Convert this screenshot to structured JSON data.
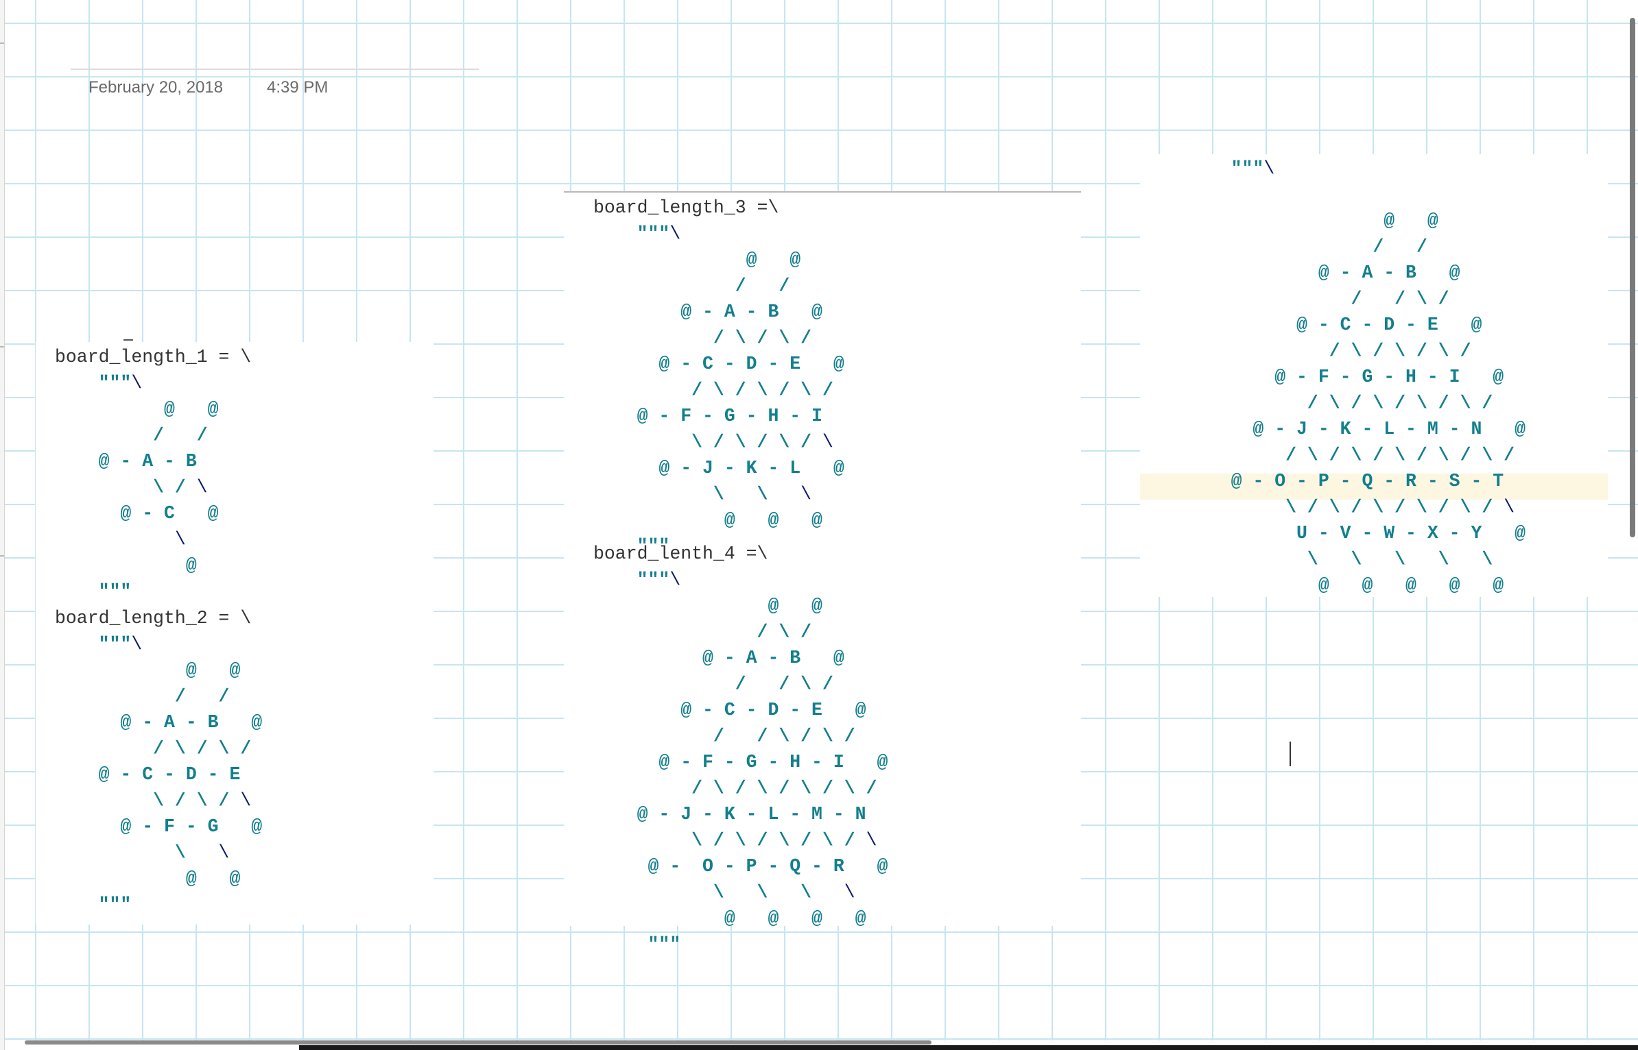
{
  "page": {
    "date": "February 20, 2018",
    "time": "4:39 PM"
  },
  "blocks": [
    {
      "name": "board-length-1",
      "lines": [
        [
          [
            "var",
            "board_length_1 = \\"
          ]
        ],
        [
          [
            "art",
            "    \"\"\""
          ],
          [
            "bs",
            "\\"
          ]
        ],
        [
          [
            "art",
            "          @   @"
          ]
        ],
        [
          [
            "art",
            "         /   /"
          ]
        ],
        [
          [
            "art",
            "    @ - A - B"
          ]
        ],
        [
          [
            "art",
            "         \\ / "
          ],
          [
            "bs",
            "\\"
          ]
        ],
        [
          [
            "art",
            "      @ - C   @"
          ]
        ],
        [
          [
            "art",
            "           "
          ],
          [
            "bs",
            "\\"
          ]
        ],
        [
          [
            "art",
            "            @"
          ]
        ],
        [
          [
            "art",
            "    \"\"\""
          ]
        ]
      ]
    },
    {
      "name": "board-length-2",
      "lines": [
        [
          [
            "var",
            "board_length_2 = \\"
          ]
        ],
        [
          [
            "art",
            "    \"\"\""
          ],
          [
            "bs",
            "\\"
          ]
        ],
        [
          [
            "art",
            "            @   @"
          ]
        ],
        [
          [
            "art",
            "           /   /"
          ]
        ],
        [
          [
            "art",
            "      @ - A - B   @"
          ]
        ],
        [
          [
            "art",
            "         / \\ / \\ /"
          ]
        ],
        [
          [
            "art",
            "    @ - C - D - E"
          ]
        ],
        [
          [
            "art",
            "         \\ / \\ / "
          ],
          [
            "bs",
            "\\"
          ]
        ],
        [
          [
            "art",
            "      @ - F - G   @"
          ]
        ],
        [
          [
            "art",
            "           \\   "
          ],
          [
            "bs",
            "\\"
          ]
        ],
        [
          [
            "art",
            "            @   @"
          ]
        ],
        [
          [
            "art",
            "    \"\"\""
          ]
        ]
      ]
    },
    {
      "name": "board-length-3",
      "lines": [
        [
          [
            "var",
            "board_length_3 =\\"
          ]
        ],
        [
          [
            "art",
            "    \"\"\""
          ],
          [
            "bs",
            "\\"
          ]
        ],
        [
          [
            "art",
            "              @   @"
          ]
        ],
        [
          [
            "art",
            "             /   /"
          ]
        ],
        [
          [
            "art",
            "        @ - A - B   @"
          ]
        ],
        [
          [
            "art",
            "           / \\ / \\ /"
          ]
        ],
        [
          [
            "art",
            "      @ - C - D - E   @"
          ]
        ],
        [
          [
            "art",
            "         / \\ / \\ / \\ /"
          ]
        ],
        [
          [
            "art",
            "    @ - F - G - H - I"
          ]
        ],
        [
          [
            "art",
            "         \\ / \\ / \\ / "
          ],
          [
            "bs",
            "\\"
          ]
        ],
        [
          [
            "art",
            "      @ - J - K - L   @"
          ]
        ],
        [
          [
            "art",
            "           \\   \\   "
          ],
          [
            "bs",
            "\\"
          ]
        ],
        [
          [
            "art",
            "            @   @   @"
          ]
        ],
        [
          [
            "art",
            "    \"\"\""
          ]
        ]
      ]
    },
    {
      "name": "board-length-4",
      "lines": [
        [
          [
            "var",
            "board_lenth_4 =\\"
          ]
        ],
        [
          [
            "art",
            "    \"\"\""
          ],
          [
            "bs",
            "\\"
          ]
        ],
        [
          [
            "art",
            "                @   @"
          ]
        ],
        [
          [
            "art",
            "               / \\ /"
          ]
        ],
        [
          [
            "art",
            "          @ - A - B   @"
          ]
        ],
        [
          [
            "art",
            "             /   / \\ /"
          ]
        ],
        [
          [
            "art",
            "        @ - C - D - E   @"
          ]
        ],
        [
          [
            "art",
            "           /   / \\ / \\ /"
          ]
        ],
        [
          [
            "art",
            "      @ - F - G - H - I   @"
          ]
        ],
        [
          [
            "art",
            "         / \\ / \\ / \\ / \\ /"
          ]
        ],
        [
          [
            "art",
            "    @ - J - K - L - M - N"
          ]
        ],
        [
          [
            "art",
            "         \\ / \\ / \\ / \\ / "
          ],
          [
            "bs",
            "\\"
          ]
        ],
        [
          [
            "art",
            "     @ -  O - P - Q - R   @"
          ]
        ],
        [
          [
            "art",
            "           \\   \\   \\   "
          ],
          [
            "bs",
            "\\"
          ]
        ],
        [
          [
            "art",
            "            @   @   @   @"
          ]
        ],
        [
          [
            "art",
            "     \"\"\""
          ]
        ]
      ]
    },
    {
      "name": "board-length-5",
      "lines": [
        [
          [
            "art",
            "    \"\"\""
          ],
          [
            "bs",
            "\\"
          ]
        ],
        [
          [
            "art",
            ""
          ]
        ],
        [
          [
            "art",
            "                  @   @"
          ]
        ],
        [
          [
            "art",
            "                 /   /"
          ]
        ],
        [
          [
            "art",
            "            @ - A - B   @"
          ]
        ],
        [
          [
            "art",
            "               /   / \\ /"
          ]
        ],
        [
          [
            "art",
            "          @ - C - D - E   @"
          ]
        ],
        [
          [
            "art",
            "             / \\ / \\ / \\ /"
          ]
        ],
        [
          [
            "art",
            "        @ - F - G - H - I   @"
          ]
        ],
        [
          [
            "art",
            "           / \\ / \\ / \\ / \\ /"
          ]
        ],
        [
          [
            "art",
            "      @ - J - K - L - M - N   @"
          ]
        ],
        [
          [
            "art",
            "         / \\ / \\ / \\ / \\ / \\ /"
          ]
        ],
        [
          [
            "art",
            "    @ - O - P - Q - R - S - T"
          ]
        ],
        [
          [
            "art",
            "         \\ / \\ / \\ / \\ / \\ / "
          ],
          [
            "bs",
            "\\"
          ]
        ],
        [
          [
            "art",
            "          U - V - W - X - Y   @"
          ]
        ],
        [
          [
            "art",
            "           \\   \\   \\   \\   \\"
          ]
        ],
        [
          [
            "art",
            "            @   @   @   @   @"
          ]
        ]
      ]
    }
  ]
}
